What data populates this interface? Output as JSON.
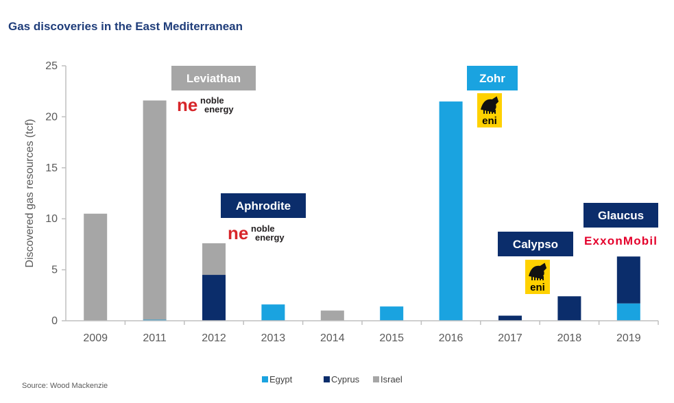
{
  "title": "Gas discoveries in the East Mediterranean",
  "source": "Source: Wood Mackenzie",
  "colors": {
    "Egypt": "#1aa3e0",
    "Cyprus": "#0b2d6b",
    "Israel": "#a6a6a6",
    "title": "#1f3d7a"
  },
  "chart_data": {
    "type": "bar",
    "stacked": true,
    "categories": [
      "2009",
      "2011",
      "2012",
      "2013",
      "2014",
      "2015",
      "2016",
      "2017",
      "2018",
      "2019"
    ],
    "series": [
      {
        "name": "Egypt",
        "values": [
          0,
          0.1,
          0,
          1.6,
          0,
          1.4,
          21.5,
          0,
          0,
          1.7
        ]
      },
      {
        "name": "Cyprus",
        "values": [
          0,
          0,
          4.5,
          0,
          0,
          0,
          0,
          0.5,
          2.4,
          4.6
        ]
      },
      {
        "name": "Israel",
        "values": [
          10.5,
          21.5,
          3.1,
          0,
          1.0,
          0,
          0,
          0,
          0,
          0
        ]
      }
    ],
    "ylabel": "Discovered gas resources (tcf)",
    "xlabel": "",
    "ylim": [
      0,
      25
    ],
    "yticks": [
      0,
      5,
      10,
      15,
      20,
      25
    ],
    "grid": false,
    "legend_position": "bottom-center",
    "annotations": [
      {
        "text": "Leviathan",
        "category": "2011",
        "style": "Israel",
        "logo": "noble-energy"
      },
      {
        "text": "Aphrodite",
        "category": "2012",
        "style": "Cyprus",
        "logo": "noble-energy"
      },
      {
        "text": "Zohr",
        "category": "2016",
        "style": "Egypt",
        "logo": "eni"
      },
      {
        "text": "Calypso",
        "category": "2017",
        "style": "Cyprus",
        "logo": "eni"
      },
      {
        "text": "Glaucus",
        "category": "2019",
        "style": "Cyprus",
        "logo": "exxonmobil"
      }
    ]
  },
  "logos": {
    "noble_mark": "ne",
    "noble_line1": "noble",
    "noble_line2": "energy",
    "eni": "eni",
    "exxon": "ExxonMobil"
  }
}
